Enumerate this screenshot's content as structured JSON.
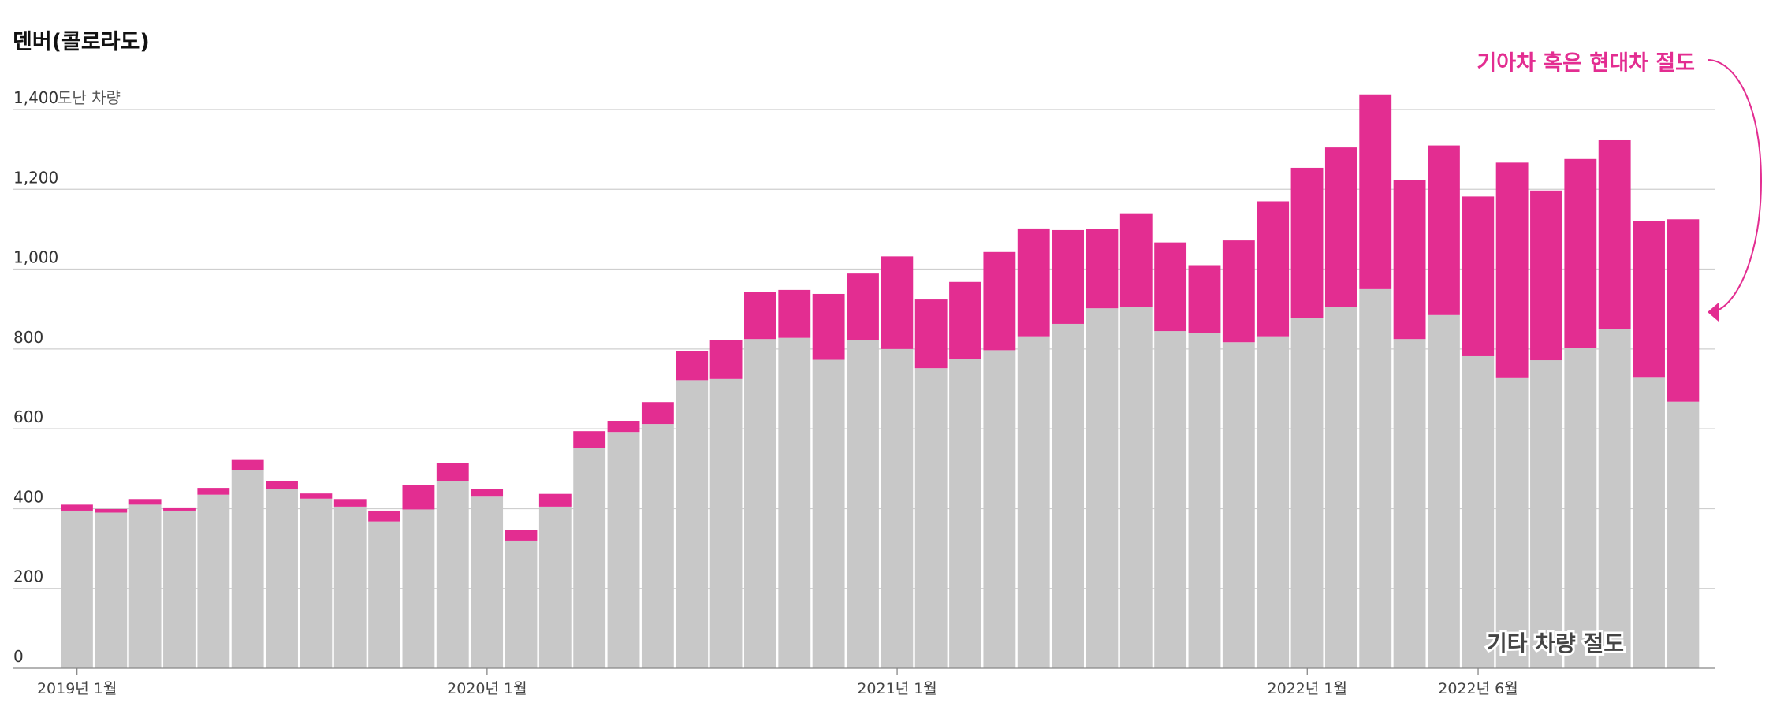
{
  "chart_data": {
    "type": "bar",
    "stacked": true,
    "title": "덴버(콜로라도)",
    "y_unit": "도난 차량",
    "ylim": [
      0,
      1400
    ],
    "y_ticks": [
      {
        "value": 0,
        "label": "0"
      },
      {
        "value": 200,
        "label": "200"
      },
      {
        "value": 400,
        "label": "400"
      },
      {
        "value": 600,
        "label": "600"
      },
      {
        "value": 800,
        "label": "800"
      },
      {
        "value": 1000,
        "label": "1,000"
      },
      {
        "value": 1200,
        "label": "1,200"
      },
      {
        "value": 1400,
        "label": "1,400"
      }
    ],
    "x_ticks": [
      {
        "index": 0,
        "label": "2019년 1월"
      },
      {
        "index": 12,
        "label": "2020년 1월"
      },
      {
        "index": 24,
        "label": "2021년 1월"
      },
      {
        "index": 36,
        "label": "2022년 1월"
      },
      {
        "index": 41,
        "label": "2022년 6월"
      }
    ],
    "grid": true,
    "categories": [
      "2019-01",
      "2019-02",
      "2019-03",
      "2019-04",
      "2019-05",
      "2019-06",
      "2019-07",
      "2019-08",
      "2019-09",
      "2019-10",
      "2019-11",
      "2019-12",
      "2020-01",
      "2020-02",
      "2020-03",
      "2020-04",
      "2020-05",
      "2020-06",
      "2020-07",
      "2020-08",
      "2020-09",
      "2020-10",
      "2020-11",
      "2020-12",
      "2021-01",
      "2021-02",
      "2021-03",
      "2021-04",
      "2021-05",
      "2021-06",
      "2021-07",
      "2021-08",
      "2021-09",
      "2021-10",
      "2021-11",
      "2021-12",
      "2022-01",
      "2022-02",
      "2022-03",
      "2022-04",
      "2022-05",
      "2022-06",
      "2022-07",
      "2022-08",
      "2022-09",
      "2022-10",
      "2022-11",
      "2022-12"
    ],
    "series": [
      {
        "name": "기타 차량 절도",
        "color": "#c8c8c8",
        "values": [
          395,
          390,
          410,
          395,
          435,
          497,
          450,
          425,
          405,
          368,
          398,
          468,
          430,
          320,
          405,
          552,
          592,
          612,
          722,
          725,
          825,
          828,
          773,
          822,
          800,
          752,
          775,
          797,
          830,
          863,
          902,
          905,
          845,
          840,
          817,
          830,
          877,
          905,
          950,
          825,
          885,
          782,
          727,
          772,
          803,
          850,
          728,
          668
        ]
      },
      {
        "name": "기아차 혹은 현대차 절도",
        "color": "#e32d91",
        "values": [
          15,
          9,
          14,
          8,
          17,
          25,
          18,
          13,
          19,
          27,
          61,
          47,
          19,
          26,
          32,
          42,
          28,
          55,
          72,
          98,
          118,
          120,
          165,
          167,
          232,
          172,
          193,
          246,
          272,
          235,
          198,
          235,
          222,
          170,
          255,
          340,
          377,
          400,
          488,
          398,
          425,
          400,
          540,
          425,
          473,
          473,
          393,
          457
        ]
      }
    ],
    "annotations": {
      "kia_hyundai_label": "기아차 혹은 현대차 절도",
      "kia_hyundai_color": "#e32d91",
      "other_label": "기타 차량 절도"
    }
  }
}
